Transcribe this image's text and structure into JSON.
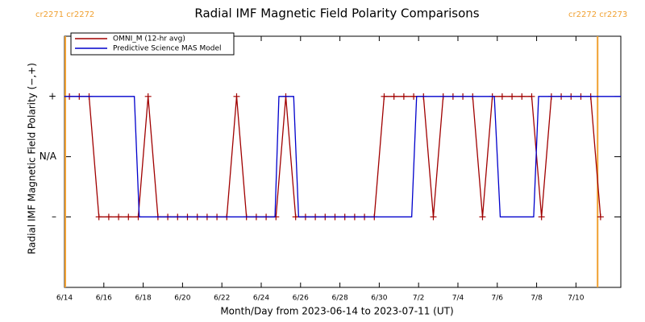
{
  "chart_data": {
    "type": "line",
    "title": "Radial IMF Magnetic Field Polarity Comparisons",
    "x_label": "Month/Day from 2023-06-14 to 2023-07-11 (UT)",
    "y_label": "Radial IMF Magnetic Field Polarity (−,+)",
    "annotations": [
      "cr2271 cr2272",
      "cr2272 cr2273"
    ],
    "boundaries": [
      0.04,
      27.1
    ],
    "boundary_color": "#f0a030",
    "xlim": [
      0,
      28.28
    ],
    "xticks": [
      {
        "value": 0,
        "label": "6/14"
      },
      {
        "value": 2,
        "label": "6/16"
      },
      {
        "value": 4,
        "label": "6/18"
      },
      {
        "value": 6,
        "label": "6/20"
      },
      {
        "value": 8,
        "label": "6/22"
      },
      {
        "value": 10,
        "label": "6/24"
      },
      {
        "value": 12,
        "label": "6/26"
      },
      {
        "value": 14,
        "label": "6/28"
      },
      {
        "value": 16,
        "label": "6/30"
      },
      {
        "value": 18,
        "label": "7/2"
      },
      {
        "value": 20,
        "label": "7/4"
      },
      {
        "value": 22,
        "label": "7/6"
      },
      {
        "value": 24,
        "label": "7/8"
      },
      {
        "value": 26,
        "label": "7/10"
      }
    ],
    "ylim": [
      -2.17,
      2
    ],
    "yticks": [
      {
        "value": -1,
        "label": "–"
      },
      {
        "value": 0,
        "label": "N/A"
      },
      {
        "value": 1,
        "label": "+"
      }
    ],
    "legend": "upper left",
    "series": [
      {
        "name": "OMNI_M (12-hr avg)",
        "color": "#a00000",
        "markers": true,
        "x": [
          0.25,
          0.75,
          1.25,
          1.75,
          2.25,
          2.75,
          3.25,
          3.75,
          4.25,
          4.75,
          5.25,
          5.75,
          6.25,
          6.75,
          7.25,
          7.75,
          8.25,
          8.75,
          9.25,
          9.75,
          10.25,
          10.75,
          11.25,
          11.75,
          12.25,
          12.75,
          13.25,
          13.75,
          14.25,
          14.75,
          15.25,
          15.75,
          16.25,
          16.75,
          17.25,
          17.75,
          18.25,
          18.75,
          19.25,
          19.75,
          20.25,
          20.75,
          21.25,
          21.75,
          22.25,
          22.75,
          23.25,
          23.75,
          24.25,
          24.75,
          25.25,
          25.75,
          26.25,
          26.75,
          27.25
        ],
        "values": [
          1,
          1,
          1,
          -1,
          -1,
          -1,
          -1,
          -1,
          1,
          -1,
          -1,
          -1,
          -1,
          -1,
          -1,
          -1,
          -1,
          1,
          -1,
          -1,
          -1,
          -1,
          1,
          -1,
          -1,
          -1,
          -1,
          -1,
          -1,
          -1,
          -1,
          -1,
          1,
          1,
          1,
          1,
          1,
          -1,
          1,
          1,
          1,
          1,
          -1,
          1,
          1,
          1,
          1,
          1,
          -1,
          1,
          1,
          1,
          1,
          1,
          -1
        ]
      },
      {
        "name": "Predictive Science MAS Model",
        "color": "#0000cc",
        "markers": false,
        "x": [
          0,
          3.55,
          3.8,
          10.7,
          10.9,
          11.65,
          11.9,
          17.65,
          17.9,
          21.85,
          22.15,
          23.85,
          24.1,
          28.28
        ],
        "values": [
          1,
          1,
          -1,
          -1,
          1,
          1,
          -1,
          -1,
          1,
          1,
          -1,
          -1,
          1,
          1
        ]
      }
    ]
  }
}
